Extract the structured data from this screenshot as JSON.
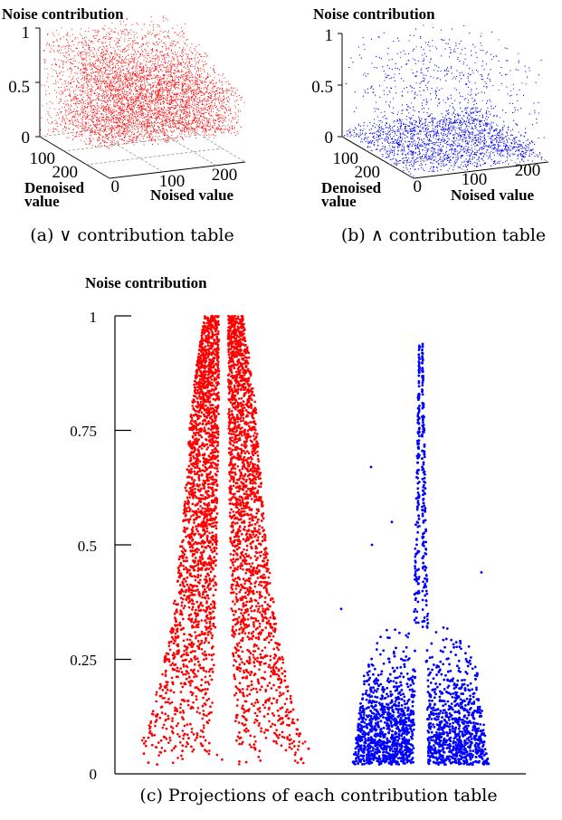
{
  "chart_data": [
    {
      "type": "scatter",
      "panel_caption": "(a) ∨ contribution table",
      "zlabel": "Noise contribution",
      "xlabel": "Noised value",
      "ylabel_line1": "Denoised",
      "ylabel_line2": "value",
      "zticks": [
        "0",
        "0.5",
        "1"
      ],
      "xticks": [
        "0",
        "100",
        "200"
      ],
      "yticks": [
        "100",
        "200"
      ],
      "xlim": [
        0,
        255
      ],
      "ylim": [
        0,
        255
      ],
      "zlim": [
        0,
        1
      ],
      "series_color": "#ff0000"
    },
    {
      "type": "scatter",
      "panel_caption": "(b) ∧ contribution table",
      "zlabel": "Noise contribution",
      "xlabel": "Noised value",
      "ylabel_line1": "Denoised",
      "ylabel_line2": "value",
      "zticks": [
        "0",
        "0.5",
        "1"
      ],
      "xticks": [
        "0",
        "100",
        "200"
      ],
      "yticks": [
        "100",
        "200"
      ],
      "xlim": [
        0,
        255
      ],
      "ylim": [
        0,
        255
      ],
      "zlim": [
        0,
        1
      ],
      "series_color": "#0000ff"
    },
    {
      "type": "scatter",
      "panel_caption": "(c) Projections of each contribution table",
      "ylabel": "Noise contribution",
      "yticks": [
        0,
        0.25,
        0.5,
        0.75,
        1
      ],
      "ytick_labels": [
        "0",
        "0.25",
        "0.5",
        "0.75",
        "1"
      ],
      "ylim": [
        0,
        1
      ],
      "grid": false,
      "series": [
        {
          "color": "#ff0000",
          "outline": [
            [
              0.03,
              0.24
            ],
            [
              0.1,
              0.2
            ],
            [
              0.22,
              0.165
            ],
            [
              0.32,
              0.14
            ],
            [
              0.45,
              0.12
            ],
            [
              0.57,
              0.105
            ],
            [
              0.69,
              0.095
            ],
            [
              0.8,
              0.085
            ],
            [
              0.9,
              0.07
            ],
            [
              1.0,
              0.05
            ]
          ],
          "gap": [
            [
              0.05,
              0.035
            ],
            [
              0.3,
              0.022
            ],
            [
              0.6,
              0.015
            ],
            [
              0.85,
              0.012
            ]
          ]
        },
        {
          "color": "#0000ff",
          "outline": [
            [
              0.02,
              0.18
            ],
            [
              0.08,
              0.17
            ],
            [
              0.15,
              0.16
            ],
            [
              0.22,
              0.15
            ],
            [
              0.3,
              0.12
            ],
            [
              0.35,
              0.04
            ],
            [
              0.5,
              0.03
            ],
            [
              0.7,
              0.02
            ],
            [
              0.85,
              0.015
            ],
            [
              0.95,
              0.005
            ]
          ],
          "gap": [
            [
              0.02,
              0.02
            ],
            [
              0.2,
              0.015
            ],
            [
              0.4,
              0.01
            ],
            [
              0.6,
              0.007
            ]
          ]
        }
      ]
    }
  ]
}
